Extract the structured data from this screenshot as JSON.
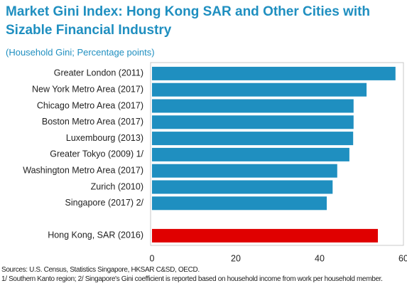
{
  "chart_data": {
    "type": "barh",
    "title": "Market Gini Index: Hong Kong SAR and Other Cities with Sizable Financial Industry",
    "subtitle": "(Household Gini; Percentage points)",
    "categories": [
      "Greater London (2011)",
      "New York Metro Area (2017)",
      "Chicago Metro Area (2017)",
      "Boston Metro Area (2017)",
      "Luxembourg (2013)",
      "Greater Tokyo (2009) 1/",
      "Washington Metro Area (2017)",
      "Zurich (2010)",
      "Singapore (2017) 2/",
      null,
      "Hong Kong, SAR (2016)"
    ],
    "values": [
      58.1,
      51.2,
      48.1,
      48.1,
      48.0,
      47.1,
      44.2,
      43.1,
      41.7,
      null,
      53.9
    ],
    "colors": [
      "#1f8fc0",
      "#1f8fc0",
      "#1f8fc0",
      "#1f8fc0",
      "#1f8fc0",
      "#1f8fc0",
      "#1f8fc0",
      "#1f8fc0",
      "#1f8fc0",
      null,
      "#e00000"
    ],
    "xlim": [
      0,
      60
    ],
    "xticks": [
      0,
      20,
      40,
      60
    ],
    "grid": false,
    "notes": [
      "Sources: U.S. Census, Statistics Singapore, HKSAR C&SD, OECD.",
      "1/ Southern Kanto region; 2/ Singapore's Gini coefficient is reported based on household income from work per household member."
    ]
  }
}
